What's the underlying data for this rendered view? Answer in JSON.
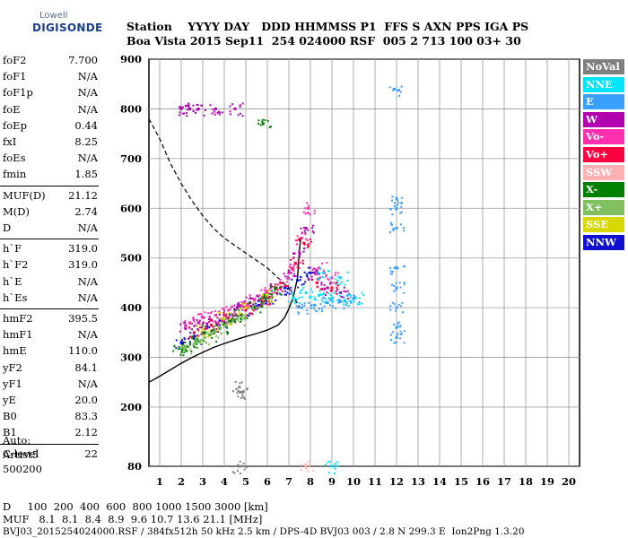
{
  "logo": {
    "line1": "Lowell",
    "line2": "DIGISONDE"
  },
  "header": {
    "line1": "Station    YYYY DAY   DDD HHMMSS P1  FFS S AXN PPS IGA PS",
    "line2": "Boa Vista 2015 Sep11  254 024000 RSF  005 2 713 100 03+ 30"
  },
  "params": [
    {
      "name": "foF2",
      "value": "7.700"
    },
    {
      "name": "foF1",
      "value": "N/A"
    },
    {
      "name": "foF1p",
      "value": "N/A"
    },
    {
      "name": "foE",
      "value": "N/A"
    },
    {
      "name": "foEp",
      "value": "0.44"
    },
    {
      "name": "fxI",
      "value": "8.25"
    },
    {
      "name": "foEs",
      "value": "N/A"
    },
    {
      "name": "fmin",
      "value": "1.85"
    },
    {
      "name": "MUF(D)",
      "value": "21.12"
    },
    {
      "name": "M(D)",
      "value": "2.74"
    },
    {
      "name": "D",
      "value": "N/A"
    },
    {
      "name": "h`F",
      "value": "319.0"
    },
    {
      "name": "h`F2",
      "value": "319.0"
    },
    {
      "name": "h`E",
      "value": "N/A"
    },
    {
      "name": "h`Es",
      "value": "N/A"
    },
    {
      "name": "hmF2",
      "value": "395.5"
    },
    {
      "name": "hmF1",
      "value": "N/A"
    },
    {
      "name": "hmE",
      "value": "110.0"
    },
    {
      "name": "yF2",
      "value": "84.1"
    },
    {
      "name": "yF1",
      "value": "N/A"
    },
    {
      "name": "yE",
      "value": "20.0"
    },
    {
      "name": "B0",
      "value": "83.3"
    },
    {
      "name": "B1",
      "value": "2.12"
    },
    {
      "name": "C-level",
      "value": "22"
    }
  ],
  "autoscale": {
    "line1": "Auto:",
    "line2": "Artist5",
    "line3": "500200"
  },
  "bottom": {
    "d_row": "D     100  200  400  600  800 1000 1500 3000 [km]",
    "muf_row": "MUF   8.1  8.1  8.4  8.9  9.6 10.7 13.6 21.1 [MHz]",
    "footer": "BVJ03_2015254024000.RSF / 384fx512h 50 kHz 2.5 km / DPS-4D BVJ03 003 / 2.8 N 299.3 E  Ion2Png 1.3.20"
  },
  "legend": [
    {
      "label": "NoVal",
      "color": "#808080"
    },
    {
      "label": "NNE",
      "color": "#00e5ff"
    },
    {
      "label": "E",
      "color": "#3aa0ff"
    },
    {
      "label": "W",
      "color": "#b000b0"
    },
    {
      "label": "Vo-",
      "color": "#ff2fae"
    },
    {
      "label": "Vo+",
      "color": "#ff0040"
    },
    {
      "label": "SSW",
      "color": "#ffb0b0"
    },
    {
      "label": "X-",
      "color": "#008000"
    },
    {
      "label": "X+",
      "color": "#80c060"
    },
    {
      "label": "SSE",
      "color": "#d8d800"
    },
    {
      "label": "NNW",
      "color": "#1010d0"
    }
  ],
  "chart_data": {
    "type": "scatter",
    "x_ticks": [
      "1",
      "2",
      "3",
      "4",
      "5",
      "6",
      "7",
      "8",
      "9",
      "10",
      "11",
      "12",
      "13",
      "14",
      "15",
      "16",
      "17",
      "18",
      "19",
      "20"
    ],
    "y_ticks": [
      "80",
      "200",
      "300",
      "400",
      "500",
      "600",
      "700",
      "800",
      "900"
    ],
    "xlim": [
      0.5,
      20.5
    ],
    "ylim": [
      80,
      900
    ],
    "grid": true,
    "legend_position": "right",
    "series": [
      {
        "name": "NNW",
        "color": "#1010d0",
        "points": [
          [
            2.0,
            330
          ],
          [
            2.6,
            340
          ],
          [
            3.2,
            360
          ],
          [
            3.8,
            375
          ],
          [
            4.4,
            385
          ],
          [
            5.0,
            395
          ],
          [
            5.6,
            405
          ],
          [
            6.2,
            420
          ],
          [
            6.8,
            440
          ],
          [
            7.4,
            455
          ],
          [
            8.0,
            470
          ]
        ]
      },
      {
        "name": "W",
        "color": "#b000b0",
        "points": [
          [
            2.2,
            360
          ],
          [
            2.8,
            370
          ],
          [
            3.4,
            375
          ],
          [
            4.0,
            385
          ],
          [
            4.6,
            400
          ],
          [
            5.2,
            410
          ],
          [
            5.8,
            420
          ],
          [
            6.4,
            440
          ],
          [
            7.0,
            470
          ],
          [
            7.5,
            510
          ],
          [
            7.8,
            560
          ],
          [
            8.2,
            470
          ],
          [
            8.8,
            440
          ],
          [
            9.4,
            430
          ],
          [
            2.0,
            800
          ],
          [
            2.4,
            800
          ],
          [
            2.8,
            800
          ],
          [
            3.6,
            800
          ],
          [
            4.5,
            800
          ]
        ]
      },
      {
        "name": "Vo-",
        "color": "#ff2fae",
        "points": [
          [
            2.4,
            370
          ],
          [
            3.0,
            380
          ],
          [
            3.6,
            385
          ],
          [
            4.2,
            395
          ],
          [
            4.8,
            405
          ],
          [
            5.4,
            415
          ],
          [
            6.0,
            430
          ],
          [
            6.6,
            450
          ],
          [
            7.2,
            480
          ],
          [
            7.6,
            540
          ],
          [
            7.9,
            600
          ],
          [
            8.4,
            480
          ],
          [
            9.0,
            460
          ]
        ]
      },
      {
        "name": "Vo+",
        "color": "#ff0040",
        "points": [
          [
            2.6,
            350
          ],
          [
            3.4,
            365
          ],
          [
            4.2,
            380
          ],
          [
            5.0,
            395
          ],
          [
            5.8,
            415
          ],
          [
            6.6,
            440
          ],
          [
            7.3,
            490
          ],
          [
            7.7,
            530
          ],
          [
            8.3,
            450
          ],
          [
            9.0,
            440
          ]
        ]
      },
      {
        "name": "X-",
        "color": "#008000",
        "points": [
          [
            1.9,
            318
          ],
          [
            2.3,
            322
          ],
          [
            2.8,
            332
          ],
          [
            3.3,
            345
          ],
          [
            3.8,
            358
          ],
          [
            4.3,
            372
          ],
          [
            4.8,
            385
          ],
          [
            5.4,
            400
          ],
          [
            5.9,
            420
          ],
          [
            6.4,
            440
          ],
          [
            5.8,
            770
          ]
        ]
      },
      {
        "name": "X+",
        "color": "#80c060",
        "points": [
          [
            2.1,
            320
          ],
          [
            2.6,
            328
          ],
          [
            3.1,
            340
          ],
          [
            3.6,
            352
          ],
          [
            4.1,
            365
          ],
          [
            4.6,
            378
          ]
        ]
      },
      {
        "name": "NNE",
        "color": "#00e5ff",
        "points": [
          [
            7.2,
            420
          ],
          [
            7.8,
            430
          ],
          [
            8.4,
            425
          ],
          [
            9.0,
            420
          ],
          [
            9.6,
            415
          ],
          [
            10.1,
            420
          ],
          [
            8.6,
            470
          ],
          [
            9.4,
            460
          ],
          [
            9.0,
            80
          ]
        ]
      },
      {
        "name": "E",
        "color": "#3aa0ff",
        "points": [
          [
            7.6,
            400
          ],
          [
            8.2,
            405
          ],
          [
            8.8,
            410
          ],
          [
            9.4,
            412
          ],
          [
            10.0,
            418
          ],
          [
            12.0,
            620
          ],
          [
            12.0,
            600
          ],
          [
            12.0,
            560
          ],
          [
            12.0,
            480
          ],
          [
            12.0,
            440
          ],
          [
            12.0,
            400
          ],
          [
            12.0,
            360
          ],
          [
            12.0,
            340
          ],
          [
            11.9,
            840
          ]
        ]
      },
      {
        "name": "SSW",
        "color": "#ffb0b0",
        "points": [
          [
            7.8,
            80
          ]
        ]
      },
      {
        "name": "SSE",
        "color": "#d8d800",
        "points": [
          [
            3.0,
            355
          ],
          [
            4.0,
            380
          ],
          [
            5.0,
            400
          ],
          [
            6.0,
            425
          ]
        ]
      },
      {
        "name": "NoVal",
        "color": "#808080",
        "points": [
          [
            4.7,
            240
          ],
          [
            4.8,
            230
          ],
          [
            4.7,
            80
          ]
        ]
      }
    ],
    "profile_curve": [
      [
        0.5,
        250
      ],
      [
        1.0,
        262
      ],
      [
        1.5,
        275
      ],
      [
        2.0,
        288
      ],
      [
        2.5,
        300
      ],
      [
        3.0,
        310
      ],
      [
        3.5,
        320
      ],
      [
        4.0,
        328
      ],
      [
        4.5,
        335
      ],
      [
        5.0,
        342
      ],
      [
        5.5,
        348
      ],
      [
        6.0,
        355
      ],
      [
        6.5,
        365
      ],
      [
        6.8,
        380
      ],
      [
        7.0,
        398
      ],
      [
        7.2,
        420
      ],
      [
        7.4,
        460
      ],
      [
        7.5,
        520
      ],
      [
        7.55,
        540
      ]
    ],
    "muf_curve": [
      [
        0.5,
        780
      ],
      [
        1.0,
        740
      ],
      [
        1.5,
        690
      ],
      [
        2.0,
        650
      ],
      [
        2.5,
        615
      ],
      [
        3.0,
        585
      ],
      [
        3.5,
        560
      ],
      [
        4.0,
        540
      ],
      [
        4.5,
        525
      ],
      [
        5.0,
        510
      ],
      [
        5.5,
        495
      ],
      [
        6.0,
        480
      ],
      [
        6.5,
        460
      ],
      [
        7.0,
        440
      ],
      [
        7.5,
        400
      ]
    ]
  }
}
